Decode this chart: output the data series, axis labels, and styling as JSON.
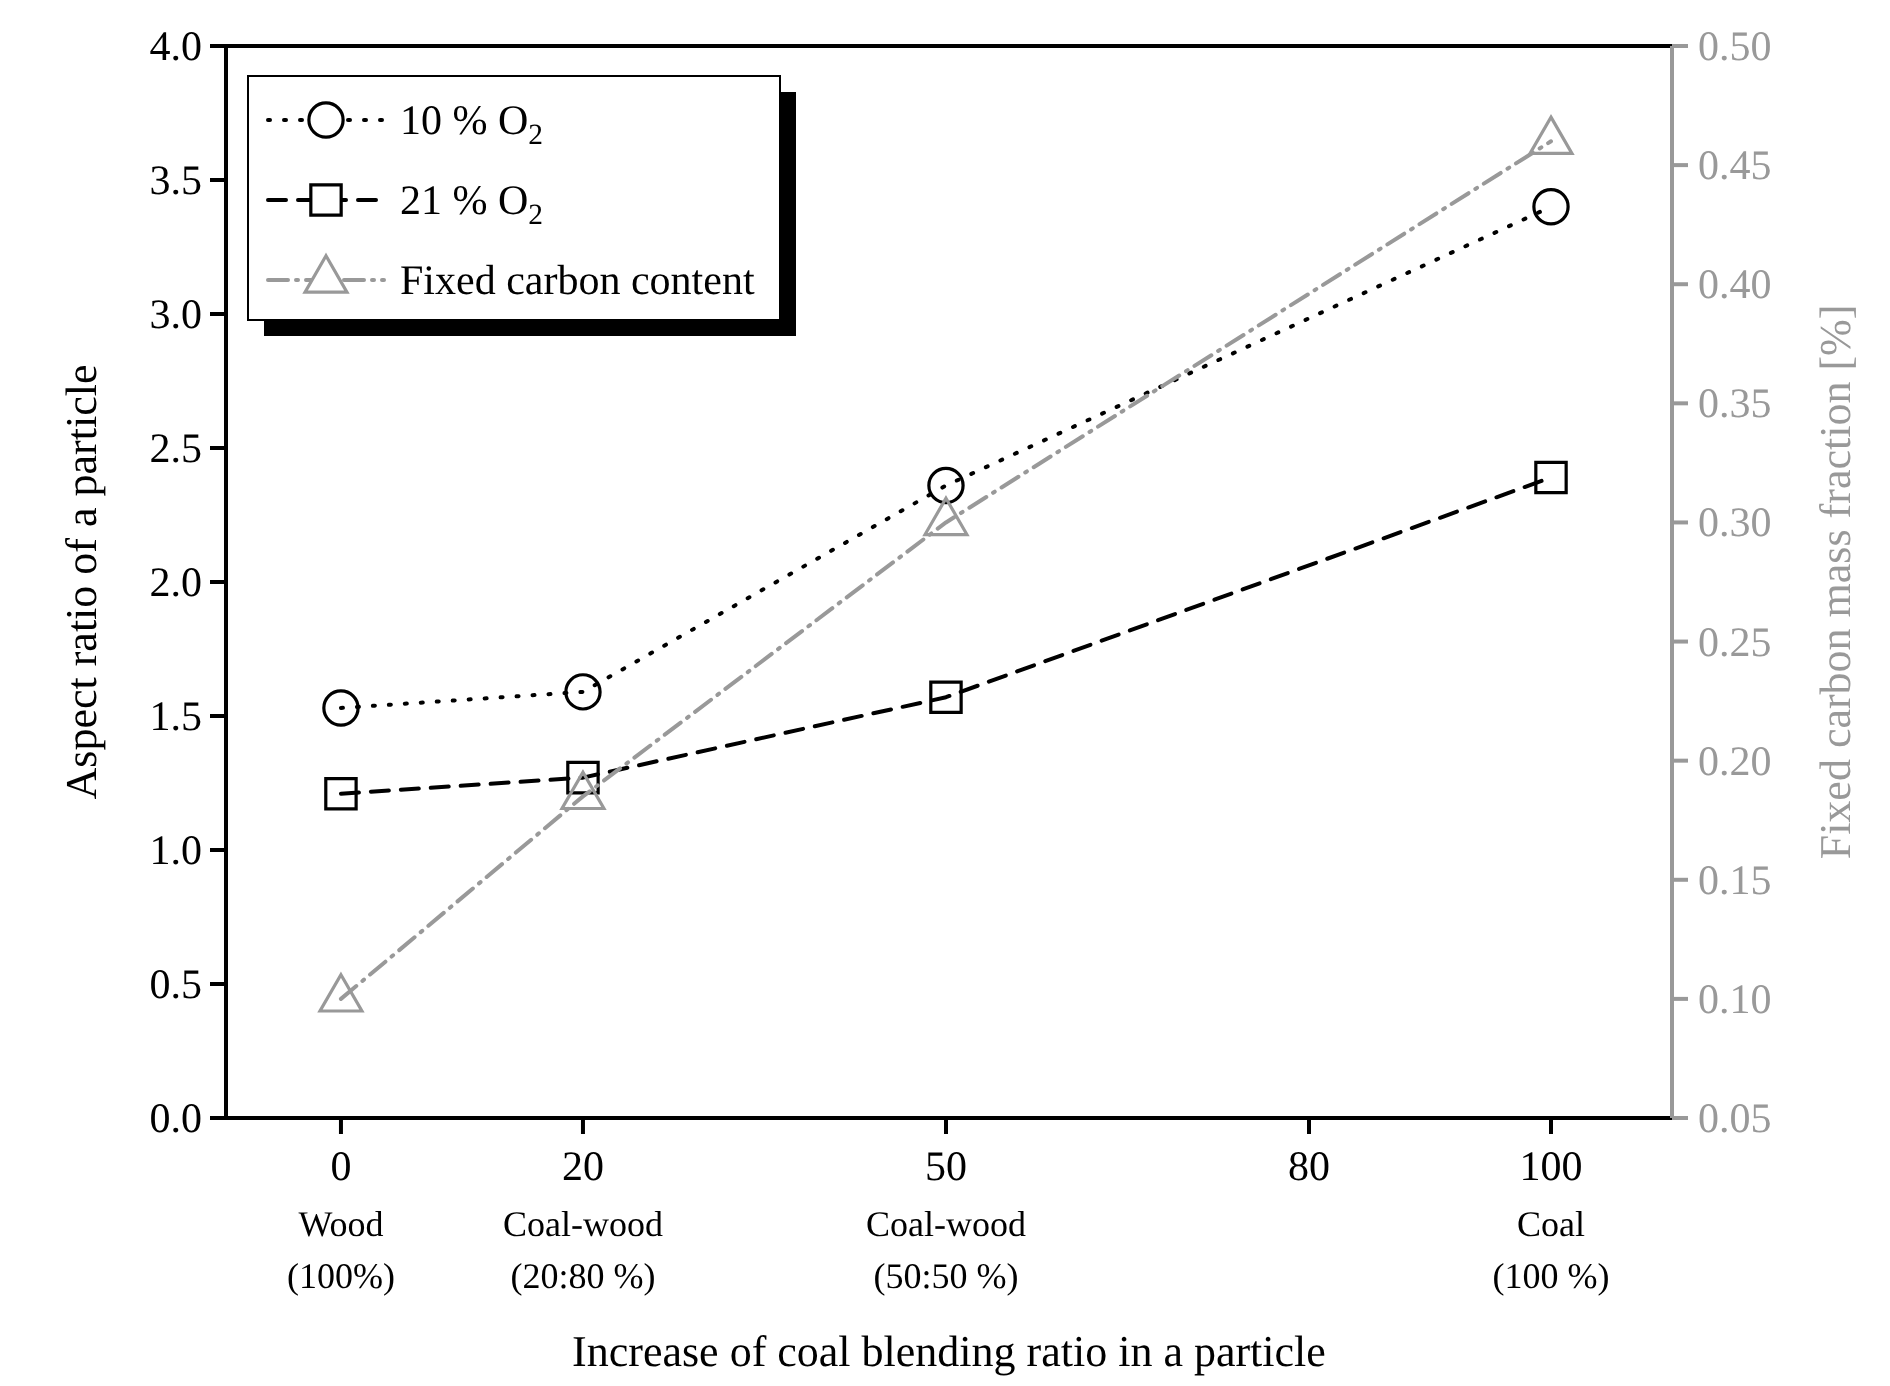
{
  "chart_data": {
    "type": "line",
    "xlabel": "Increase of coal blending ratio in a particle",
    "ylabel": "Aspect ratio of a particle",
    "y2label": "Fixed carbon mass fraction [%]",
    "xlim": [
      -9.5,
      110
    ],
    "xticks": [
      0,
      20,
      50,
      80,
      100
    ],
    "ylim": [
      0,
      4
    ],
    "yticks": [
      {
        "value": 0,
        "label": "0.0"
      },
      0.5,
      {
        "value": 1,
        "label": "1.0"
      },
      1.5,
      {
        "value": 2,
        "label": "2.0"
      },
      2.5,
      {
        "value": 3,
        "label": "3.0"
      },
      3.5,
      {
        "value": 4,
        "label": "4.0"
      }
    ],
    "y2lim": [
      0.05,
      0.5
    ],
    "y2ticks": [
      0.05,
      {
        "value": 0.1,
        "label": "0.10"
      },
      0.15,
      {
        "value": 0.2,
        "label": "0.20"
      },
      0.25,
      {
        "value": 0.3,
        "label": "0.30"
      },
      0.35,
      {
        "value": 0.4,
        "label": "0.40"
      },
      0.45,
      {
        "value": 0.5,
        "label": "0.50"
      }
    ],
    "x": [
      0,
      20,
      50,
      100
    ],
    "series": [
      {
        "name": "10 % O$_{2}$",
        "color": "#000000",
        "values": [
          1.53,
          1.59,
          2.36,
          3.4
        ],
        "marker": "circle",
        "line_style": "dotted"
      },
      {
        "name": "21 % O$_{2}$",
        "color": "#000000",
        "values": [
          1.21,
          1.27,
          1.57,
          2.39
        ],
        "marker": "square",
        "line_style": "dashed"
      },
      {
        "name": "Fixed carbon content",
        "color": "#999999",
        "values": [
          0.1,
          0.185,
          0.3,
          0.46
        ],
        "marker": "triangle",
        "line_style": "dashdot",
        "axis": "y2"
      }
    ],
    "annotations": [
      "Wood\n(100%)",
      "Coal-wood\n(20:80 %)",
      "Coal-wood\n(50:50 %)",
      "Coal\n(100 %)"
    ],
    "legend": "top left"
  }
}
